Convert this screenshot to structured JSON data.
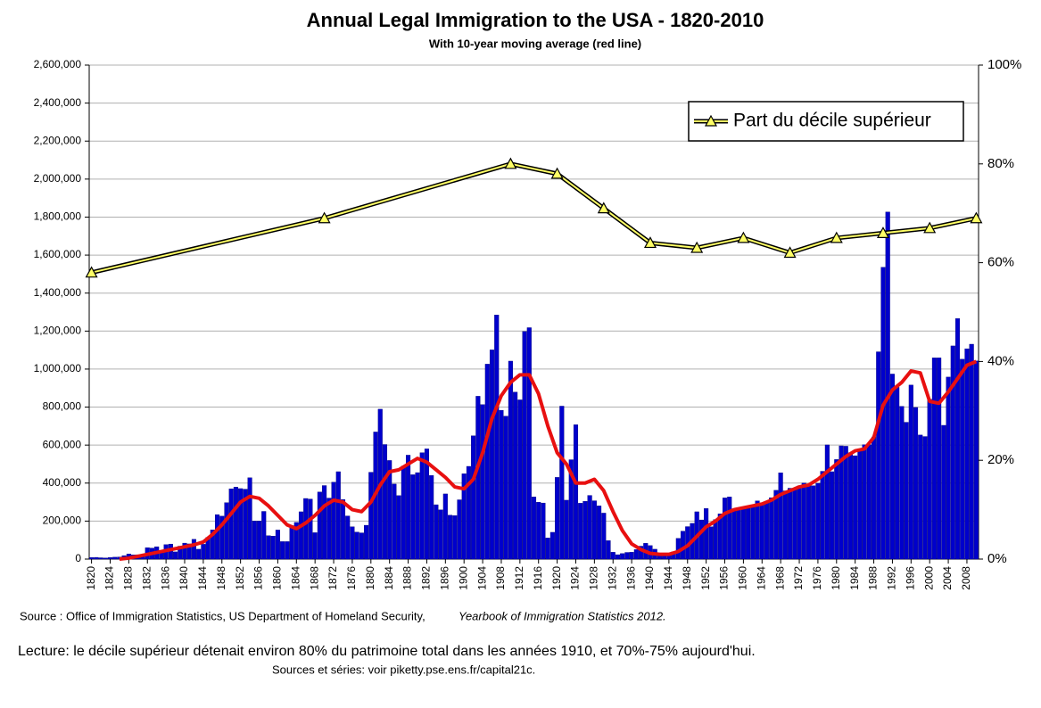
{
  "chart_data": {
    "type": "bar",
    "title": "Annual Legal Immigration to the USA - 1820-2010",
    "subtitle": "With 10-year moving average (red line)",
    "source": "Source : Office of Immigration Statistics, US Department of Homeland Security,",
    "source_italic": "Yearbook of Immigration Statistics 2012.",
    "note": "Lecture: le décile supérieur détenait environ 80% du patrimoine total dans les années 1910, et 70%-75% aujourd'hui.",
    "sources": "Sources et séries: voir piketty.pse.ens.fr/capital21c.",
    "x": [
      1820,
      1821,
      1822,
      1823,
      1824,
      1825,
      1826,
      1827,
      1828,
      1829,
      1830,
      1831,
      1832,
      1833,
      1834,
      1835,
      1836,
      1837,
      1838,
      1839,
      1840,
      1841,
      1842,
      1843,
      1844,
      1845,
      1846,
      1847,
      1848,
      1849,
      1850,
      1851,
      1852,
      1853,
      1854,
      1855,
      1856,
      1857,
      1858,
      1859,
      1860,
      1861,
      1862,
      1863,
      1864,
      1865,
      1866,
      1867,
      1868,
      1869,
      1870,
      1871,
      1872,
      1873,
      1874,
      1875,
      1876,
      1877,
      1878,
      1879,
      1880,
      1881,
      1882,
      1883,
      1884,
      1885,
      1886,
      1887,
      1888,
      1889,
      1890,
      1891,
      1892,
      1893,
      1894,
      1895,
      1896,
      1897,
      1898,
      1899,
      1900,
      1901,
      1902,
      1903,
      1904,
      1905,
      1906,
      1907,
      1908,
      1909,
      1910,
      1911,
      1912,
      1913,
      1914,
      1915,
      1916,
      1917,
      1918,
      1919,
      1920,
      1921,
      1922,
      1923,
      1924,
      1925,
      1926,
      1927,
      1928,
      1929,
      1930,
      1931,
      1932,
      1933,
      1934,
      1935,
      1936,
      1937,
      1938,
      1939,
      1940,
      1941,
      1942,
      1943,
      1944,
      1945,
      1946,
      1947,
      1948,
      1949,
      1950,
      1951,
      1952,
      1953,
      1954,
      1955,
      1956,
      1957,
      1958,
      1959,
      1960,
      1961,
      1962,
      1963,
      1964,
      1965,
      1966,
      1967,
      1968,
      1969,
      1970,
      1971,
      1972,
      1973,
      1974,
      1975,
      1976,
      1977,
      1978,
      1979,
      1980,
      1981,
      1982,
      1983,
      1984,
      1985,
      1986,
      1987,
      1988,
      1989,
      1990,
      1991,
      1992,
      1993,
      1994,
      1995,
      1996,
      1997,
      1998,
      1999,
      2000,
      2001,
      2002,
      2003,
      2004,
      2005,
      2006,
      2007,
      2008,
      2009,
      2010
    ],
    "xlim": [
      1819.5,
      2010.5
    ],
    "xticks": [
      1820,
      1824,
      1828,
      1832,
      1836,
      1840,
      1844,
      1848,
      1852,
      1856,
      1860,
      1864,
      1868,
      1872,
      1876,
      1880,
      1884,
      1888,
      1892,
      1896,
      1900,
      1904,
      1908,
      1912,
      1916,
      1920,
      1924,
      1928,
      1932,
      1936,
      1940,
      1944,
      1948,
      1952,
      1956,
      1960,
      1964,
      1968,
      1972,
      1976,
      1980,
      1984,
      1988,
      1992,
      1996,
      2000,
      2004,
      2008
    ],
    "ylim": [
      0,
      2600000
    ],
    "yticks": [
      {
        "value": 2600000,
        "label": "2,600,000"
      },
      {
        "value": 2400000,
        "label": "2,400,000"
      },
      {
        "value": 2000000,
        "label": "2,000,000"
      },
      {
        "value": 2200000,
        "label": "2,200,000"
      },
      {
        "value": 1800000,
        "label": "1,800,000"
      },
      {
        "value": 1600000,
        "label": "1,600,000"
      },
      {
        "value": 1400000,
        "label": "1,400,000"
      },
      {
        "value": 1200000,
        "label": "1,200,000"
      },
      {
        "value": 1000000,
        "label": "1,000,000"
      },
      {
        "value": 800000,
        "label": "800,000"
      },
      {
        "value": 600000,
        "label": "600,000"
      },
      {
        "value": 400000,
        "label": "400,000"
      },
      {
        "value": 200000,
        "label": "200,000"
      },
      0
    ],
    "y2lim": [
      0,
      100
    ],
    "y2ticks": [
      {
        "value": 0,
        "label": "0%"
      },
      {
        "value": 20,
        "label": "20%"
      },
      {
        "value": 40,
        "label": "40%"
      },
      {
        "value": 60,
        "label": "60%"
      },
      {
        "value": 80,
        "label": "80%"
      },
      {
        "value": 100,
        "label": "100%"
      }
    ],
    "grid": true,
    "legend": "top-right",
    "series": [
      {
        "type": "bar",
        "color": "#0000cc",
        "values": [
          8000,
          9000,
          7000,
          6000,
          8000,
          10000,
          11000,
          18000,
          27000,
          22000,
          23000,
          22000,
          60000,
          58000,
          65000,
          45000,
          76000,
          79000,
          38000,
          68000,
          84000,
          80000,
          104000,
          52000,
          78000,
          114000,
          154000,
          234000,
          226000,
          297000,
          370000,
          379000,
          371000,
          368000,
          428000,
          200000,
          200000,
          251000,
          123000,
          121000,
          153000,
          92000,
          92000,
          176000,
          193000,
          249000,
          319000,
          316000,
          139000,
          353000,
          387000,
          321000,
          405000,
          460000,
          313000,
          227000,
          170000,
          142000,
          138000,
          178000,
          457000,
          669000,
          789000,
          603000,
          519000,
          395000,
          334000,
          490000,
          547000,
          444000,
          455000,
          560000,
          580000,
          440000,
          286000,
          259000,
          343000,
          231000,
          229000,
          312000,
          449000,
          488000,
          649000,
          857000,
          813000,
          1026000,
          1101000,
          1285000,
          783000,
          752000,
          1042000,
          879000,
          838000,
          1198000,
          1218000,
          327000,
          299000,
          295000,
          111000,
          141000,
          430000,
          805000,
          310000,
          523000,
          707000,
          294000,
          304000,
          335000,
          307000,
          280000,
          242000,
          97000,
          36000,
          23000,
          29000,
          35000,
          36000,
          50000,
          68000,
          83000,
          71000,
          52000,
          29000,
          24000,
          29000,
          38000,
          109000,
          147000,
          171000,
          188000,
          249000,
          206000,
          266000,
          170000,
          208000,
          238000,
          322000,
          327000,
          253000,
          261000,
          265000,
          271000,
          284000,
          306000,
          292000,
          297000,
          323000,
          362000,
          454000,
          359000,
          373000,
          370000,
          385000,
          400000,
          395000,
          386000,
          399000,
          462000,
          601000,
          460000,
          524000,
          596000,
          594000,
          560000,
          544000,
          570000,
          602000,
          602000,
          643000,
          1091000,
          1536000,
          1827000,
          974000,
          904000,
          804000,
          720000,
          916000,
          798000,
          653000,
          645000,
          841000,
          1059000,
          1059000,
          704000,
          958000,
          1122000,
          1266000,
          1052000,
          1107000,
          1131000,
          1043000
        ]
      },
      {
        "type": "line",
        "color": "#e81010",
        "x": [
          1826,
          1828,
          1830,
          1832,
          1834,
          1836,
          1838,
          1840,
          1842,
          1844,
          1846,
          1848,
          1850,
          1852,
          1854,
          1856,
          1858,
          1860,
          1862,
          1864,
          1866,
          1868,
          1870,
          1872,
          1874,
          1876,
          1878,
          1880,
          1882,
          1884,
          1886,
          1888,
          1890,
          1892,
          1894,
          1896,
          1898,
          1900,
          1902,
          1904,
          1906,
          1908,
          1910,
          1912,
          1914,
          1916,
          1918,
          1920,
          1922,
          1924,
          1926,
          1928,
          1930,
          1932,
          1934,
          1936,
          1938,
          1940,
          1942,
          1944,
          1946,
          1948,
          1950,
          1952,
          1954,
          1956,
          1958,
          1960,
          1962,
          1964,
          1966,
          1968,
          1970,
          1972,
          1974,
          1976,
          1978,
          1980,
          1982,
          1984,
          1986,
          1988,
          1990,
          1992,
          1994,
          1996,
          1998,
          2000,
          2002,
          2004,
          2006,
          2008,
          2010
        ],
        "values": [
          0,
          5000,
          15000,
          25000,
          35000,
          45000,
          55000,
          65000,
          75000,
          90000,
          130000,
          180000,
          240000,
          300000,
          330000,
          320000,
          280000,
          230000,
          180000,
          160000,
          190000,
          230000,
          280000,
          310000,
          300000,
          260000,
          250000,
          300000,
          390000,
          460000,
          470000,
          500000,
          530000,
          510000,
          470000,
          430000,
          380000,
          370000,
          420000,
          560000,
          740000,
          860000,
          930000,
          970000,
          970000,
          870000,
          700000,
          560000,
          500000,
          400000,
          400000,
          420000,
          360000,
          250000,
          150000,
          80000,
          50000,
          30000,
          25000,
          25000,
          40000,
          70000,
          120000,
          170000,
          200000,
          240000,
          260000,
          270000,
          280000,
          290000,
          310000,
          340000,
          360000,
          380000,
          390000,
          420000,
          460000,
          500000,
          540000,
          570000,
          580000,
          640000,
          810000,
          890000,
          930000,
          990000,
          980000,
          830000,
          820000,
          880000,
          950000,
          1020000,
          1040000
        ]
      },
      {
        "type": "line",
        "axis": "y2",
        "name": "Part du décile supérieur",
        "color": "#ffff66",
        "x": [
          1820,
          1870,
          1910,
          1920,
          1930,
          1940,
          1950,
          1960,
          1970,
          1980,
          1990,
          2000,
          2010
        ],
        "values": [
          58,
          69,
          80,
          78,
          71,
          64,
          63,
          65,
          62,
          65,
          66,
          67,
          69
        ]
      }
    ]
  }
}
